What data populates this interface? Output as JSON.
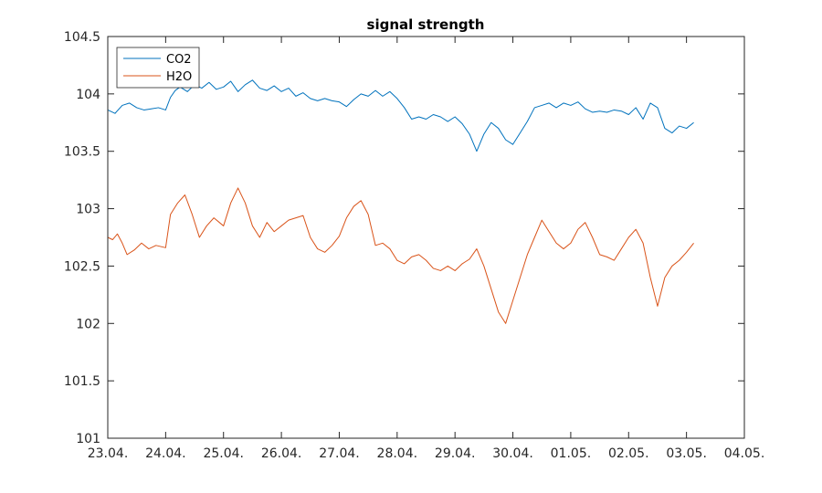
{
  "chart_data": {
    "type": "line",
    "title": "signal strength",
    "xlabel": "",
    "ylabel": "",
    "x_ticks": [
      "23.04.",
      "24.04.",
      "25.04.",
      "26.04.",
      "27.04.",
      "28.04.",
      "29.04.",
      "30.04.",
      "01.05.",
      "02.05.",
      "03.05.",
      "04.05."
    ],
    "y_ticks": [
      "101",
      "101.5",
      "102",
      "102.5",
      "103",
      "103.5",
      "104",
      "104.5"
    ],
    "ylim": [
      101,
      104.5
    ],
    "xlim": [
      "23.04.",
      "04.05."
    ],
    "legend_position": "top-left",
    "grid": false,
    "series": [
      {
        "name": "CO2",
        "color": "#0072BD",
        "points": [
          [
            "23.04. 00:00",
            103.86
          ],
          [
            "23.04. 03:00",
            103.83
          ],
          [
            "23.04. 06:00",
            103.9
          ],
          [
            "23.04. 09:00",
            103.92
          ],
          [
            "23.04. 12:00",
            103.88
          ],
          [
            "23.04. 15:00",
            103.86
          ],
          [
            "23.04. 18:00",
            103.87
          ],
          [
            "23.04. 21:00",
            103.88
          ],
          [
            "24.04. 00:00",
            103.86
          ],
          [
            "24.04. 02:00",
            103.97
          ],
          [
            "24.04. 04:00",
            104.03
          ],
          [
            "24.04. 06:00",
            104.06
          ],
          [
            "24.04. 09:00",
            104.02
          ],
          [
            "24.04. 12:00",
            104.08
          ],
          [
            "24.04. 15:00",
            104.05
          ],
          [
            "24.04. 18:00",
            104.1
          ],
          [
            "24.04. 21:00",
            104.04
          ],
          [
            "25.04. 00:00",
            104.06
          ],
          [
            "25.04. 03:00",
            104.11
          ],
          [
            "25.04. 06:00",
            104.02
          ],
          [
            "25.04. 09:00",
            104.08
          ],
          [
            "25.04. 12:00",
            104.12
          ],
          [
            "25.04. 15:00",
            104.05
          ],
          [
            "25.04. 18:00",
            104.03
          ],
          [
            "25.04. 21:00",
            104.07
          ],
          [
            "26.04. 00:00",
            104.02
          ],
          [
            "26.04. 03:00",
            104.05
          ],
          [
            "26.04. 06:00",
            103.98
          ],
          [
            "26.04. 09:00",
            104.01
          ],
          [
            "26.04. 12:00",
            103.96
          ],
          [
            "26.04. 15:00",
            103.94
          ],
          [
            "26.04. 18:00",
            103.96
          ],
          [
            "26.04. 21:00",
            103.94
          ],
          [
            "27.04. 00:00",
            103.93
          ],
          [
            "27.04. 03:00",
            103.89
          ],
          [
            "27.04. 06:00",
            103.95
          ],
          [
            "27.04. 09:00",
            104.0
          ],
          [
            "27.04. 12:00",
            103.98
          ],
          [
            "27.04. 15:00",
            104.03
          ],
          [
            "27.04. 18:00",
            103.98
          ],
          [
            "27.04. 21:00",
            104.02
          ],
          [
            "28.04. 00:00",
            103.96
          ],
          [
            "28.04. 03:00",
            103.88
          ],
          [
            "28.04. 06:00",
            103.78
          ],
          [
            "28.04. 09:00",
            103.8
          ],
          [
            "28.04. 12:00",
            103.78
          ],
          [
            "28.04. 15:00",
            103.82
          ],
          [
            "28.04. 18:00",
            103.8
          ],
          [
            "28.04. 21:00",
            103.76
          ],
          [
            "29.04. 00:00",
            103.8
          ],
          [
            "29.04. 03:00",
            103.74
          ],
          [
            "29.04. 06:00",
            103.65
          ],
          [
            "29.04. 09:00",
            103.5
          ],
          [
            "29.04. 12:00",
            103.65
          ],
          [
            "29.04. 15:00",
            103.75
          ],
          [
            "29.04. 18:00",
            103.7
          ],
          [
            "29.04. 21:00",
            103.6
          ],
          [
            "30.04. 00:00",
            103.56
          ],
          [
            "30.04. 03:00",
            103.66
          ],
          [
            "30.04. 06:00",
            103.76
          ],
          [
            "30.04. 09:00",
            103.88
          ],
          [
            "30.04. 12:00",
            103.9
          ],
          [
            "30.04. 15:00",
            103.92
          ],
          [
            "30.04. 18:00",
            103.88
          ],
          [
            "30.04. 21:00",
            103.92
          ],
          [
            "01.05. 00:00",
            103.9
          ],
          [
            "01.05. 03:00",
            103.93
          ],
          [
            "01.05. 06:00",
            103.87
          ],
          [
            "01.05. 09:00",
            103.84
          ],
          [
            "01.05. 12:00",
            103.85
          ],
          [
            "01.05. 15:00",
            103.84
          ],
          [
            "01.05. 18:00",
            103.86
          ],
          [
            "01.05. 21:00",
            103.85
          ],
          [
            "02.05. 00:00",
            103.82
          ],
          [
            "02.05. 03:00",
            103.88
          ],
          [
            "02.05. 06:00",
            103.78
          ],
          [
            "02.05. 09:00",
            103.92
          ],
          [
            "02.05. 12:00",
            103.88
          ],
          [
            "02.05. 15:00",
            103.7
          ],
          [
            "02.05. 18:00",
            103.66
          ],
          [
            "02.05. 21:00",
            103.72
          ],
          [
            "03.05. 00:00",
            103.7
          ],
          [
            "03.05. 03:00",
            103.75
          ]
        ]
      },
      {
        "name": "H2O",
        "color": "#D95319",
        "points": [
          [
            "23.04. 00:00",
            102.75
          ],
          [
            "23.04. 02:00",
            102.73
          ],
          [
            "23.04. 04:00",
            102.78
          ],
          [
            "23.04. 06:00",
            102.7
          ],
          [
            "23.04. 08:00",
            102.6
          ],
          [
            "23.04. 11:00",
            102.64
          ],
          [
            "23.04. 14:00",
            102.7
          ],
          [
            "23.04. 17:00",
            102.65
          ],
          [
            "23.04. 20:00",
            102.68
          ],
          [
            "24.04. 00:00",
            102.66
          ],
          [
            "24.04. 02:00",
            102.95
          ],
          [
            "24.04. 05:00",
            103.05
          ],
          [
            "24.04. 08:00",
            103.12
          ],
          [
            "24.04. 11:00",
            102.95
          ],
          [
            "24.04. 14:00",
            102.75
          ],
          [
            "24.04. 17:00",
            102.85
          ],
          [
            "24.04. 20:00",
            102.92
          ],
          [
            "25.04. 00:00",
            102.85
          ],
          [
            "25.04. 03:00",
            103.05
          ],
          [
            "25.04. 06:00",
            103.18
          ],
          [
            "25.04. 09:00",
            103.05
          ],
          [
            "25.04. 12:00",
            102.85
          ],
          [
            "25.04. 15:00",
            102.75
          ],
          [
            "25.04. 18:00",
            102.88
          ],
          [
            "25.04. 21:00",
            102.8
          ],
          [
            "26.04. 00:00",
            102.85
          ],
          [
            "26.04. 03:00",
            102.9
          ],
          [
            "26.04. 06:00",
            102.92
          ],
          [
            "26.04. 09:00",
            102.94
          ],
          [
            "26.04. 12:00",
            102.75
          ],
          [
            "26.04. 15:00",
            102.65
          ],
          [
            "26.04. 18:00",
            102.62
          ],
          [
            "26.04. 21:00",
            102.68
          ],
          [
            "27.04. 00:00",
            102.76
          ],
          [
            "27.04. 03:00",
            102.92
          ],
          [
            "27.04. 06:00",
            103.02
          ],
          [
            "27.04. 09:00",
            103.07
          ],
          [
            "27.04. 12:00",
            102.95
          ],
          [
            "27.04. 15:00",
            102.68
          ],
          [
            "27.04. 18:00",
            102.7
          ],
          [
            "27.04. 21:00",
            102.65
          ],
          [
            "28.04. 00:00",
            102.55
          ],
          [
            "28.04. 03:00",
            102.52
          ],
          [
            "28.04. 06:00",
            102.58
          ],
          [
            "28.04. 09:00",
            102.6
          ],
          [
            "28.04. 12:00",
            102.55
          ],
          [
            "28.04. 15:00",
            102.48
          ],
          [
            "28.04. 18:00",
            102.46
          ],
          [
            "28.04. 21:00",
            102.5
          ],
          [
            "29.04. 00:00",
            102.46
          ],
          [
            "29.04. 03:00",
            102.52
          ],
          [
            "29.04. 06:00",
            102.56
          ],
          [
            "29.04. 09:00",
            102.65
          ],
          [
            "29.04. 12:00",
            102.5
          ],
          [
            "29.04. 15:00",
            102.3
          ],
          [
            "29.04. 18:00",
            102.1
          ],
          [
            "29.04. 21:00",
            102.0
          ],
          [
            "30.04. 00:00",
            102.2
          ],
          [
            "30.04. 03:00",
            102.4
          ],
          [
            "30.04. 06:00",
            102.6
          ],
          [
            "30.04. 09:00",
            102.75
          ],
          [
            "30.04. 12:00",
            102.9
          ],
          [
            "30.04. 15:00",
            102.8
          ],
          [
            "30.04. 18:00",
            102.7
          ],
          [
            "30.04. 21:00",
            102.65
          ],
          [
            "01.05. 00:00",
            102.7
          ],
          [
            "01.05. 03:00",
            102.82
          ],
          [
            "01.05. 06:00",
            102.88
          ],
          [
            "01.05. 09:00",
            102.75
          ],
          [
            "01.05. 12:00",
            102.6
          ],
          [
            "01.05. 15:00",
            102.58
          ],
          [
            "01.05. 18:00",
            102.55
          ],
          [
            "01.05. 21:00",
            102.65
          ],
          [
            "02.05. 00:00",
            102.75
          ],
          [
            "02.05. 03:00",
            102.82
          ],
          [
            "02.05. 06:00",
            102.7
          ],
          [
            "02.05. 09:00",
            102.4
          ],
          [
            "02.05. 12:00",
            102.15
          ],
          [
            "02.05. 15:00",
            102.4
          ],
          [
            "02.05. 18:00",
            102.5
          ],
          [
            "02.05. 21:00",
            102.55
          ],
          [
            "03.05. 00:00",
            102.62
          ],
          [
            "03.05. 03:00",
            102.7
          ]
        ]
      }
    ]
  }
}
